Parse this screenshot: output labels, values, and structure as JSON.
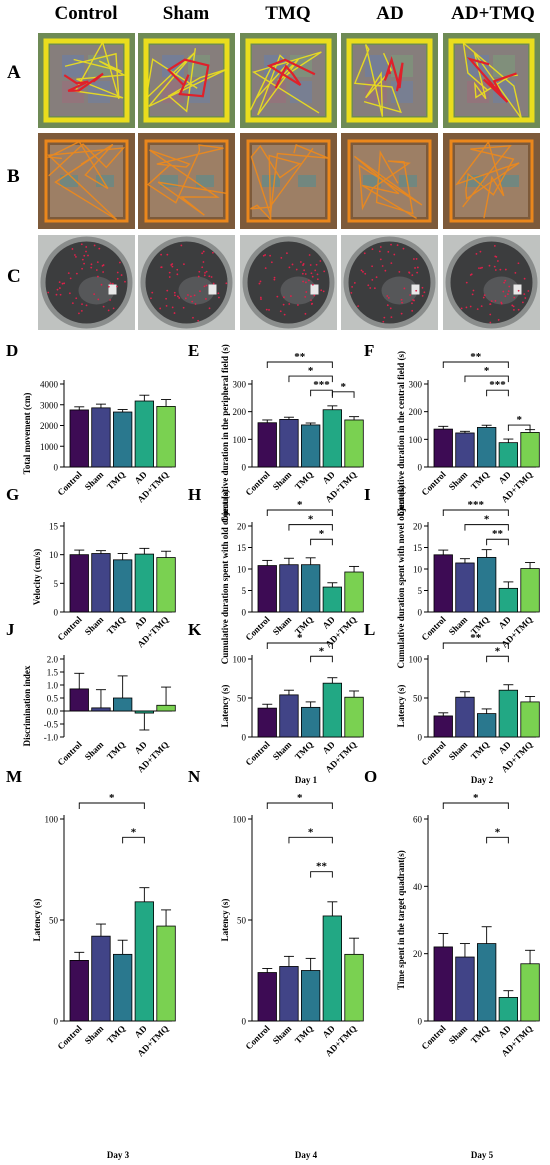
{
  "column_headers": [
    "Control",
    "Sham",
    "TMQ",
    "AD",
    "AD+TMQ"
  ],
  "photo_rows": [
    {
      "label": "A",
      "track_color": "#f0e21a",
      "bg": "#6e8a55"
    },
    {
      "label": "B",
      "track_color": "#f08a1a",
      "bg": "#7d5a3a"
    },
    {
      "label": "C",
      "track_color": "#e0204a",
      "bg": "#4a4a4a"
    }
  ],
  "colors": {
    "Control": "#3d0b54",
    "Sham": "#414487",
    "TMQ": "#2a788e",
    "AD": "#22a884",
    "AD+TMQ": "#7ad151"
  },
  "chart_data": [
    {
      "panel": "D",
      "type": "bar",
      "categories": [
        "Control",
        "Sham",
        "TMQ",
        "AD",
        "AD+TMQ"
      ],
      "values": [
        2750,
        2850,
        2650,
        3180,
        2920
      ],
      "errors": [
        150,
        180,
        120,
        280,
        330
      ],
      "ylabel": "Total movement (cm)",
      "ylim": [
        0,
        4000
      ],
      "yticks": [
        0,
        1000,
        2000,
        3000,
        4000
      ],
      "sig": [],
      "xlabel": ""
    },
    {
      "panel": "E",
      "type": "bar",
      "categories": [
        "Control",
        "Sham",
        "TMQ",
        "AD",
        "AD+TMQ"
      ],
      "values": [
        160,
        172,
        152,
        207,
        170
      ],
      "errors": [
        10,
        8,
        7,
        14,
        12
      ],
      "ylabel": "Cumulative duration in the peripheral field (s)",
      "ylim": [
        0,
        300
      ],
      "yticks": [
        0,
        100,
        200,
        300
      ],
      "sig": [
        [
          "Control",
          "AD",
          "**"
        ],
        [
          "Sham",
          "AD",
          "*"
        ],
        [
          "TMQ",
          "AD",
          "***"
        ],
        [
          "AD",
          "AD+TMQ",
          "*"
        ]
      ],
      "xlabel": ""
    },
    {
      "panel": "F",
      "type": "bar",
      "categories": [
        "Control",
        "Sham",
        "TMQ",
        "AD",
        "AD+TMQ"
      ],
      "values": [
        137,
        123,
        143,
        88,
        125
      ],
      "errors": [
        10,
        6,
        8,
        13,
        10
      ],
      "ylabel": "Cumulative duration in the central field (s)",
      "ylim": [
        0,
        300
      ],
      "yticks": [
        0,
        100,
        200,
        300
      ],
      "sig": [
        [
          "Control",
          "AD",
          "**"
        ],
        [
          "Sham",
          "AD",
          "*"
        ],
        [
          "TMQ",
          "AD",
          "***"
        ],
        [
          "AD",
          "AD+TMQ",
          "*"
        ]
      ],
      "xlabel": ""
    },
    {
      "panel": "G",
      "type": "bar",
      "categories": [
        "Control",
        "Sham",
        "TMQ",
        "AD",
        "AD+TMQ"
      ],
      "values": [
        10.0,
        10.2,
        9.1,
        10.1,
        9.5
      ],
      "errors": [
        0.8,
        0.5,
        1.1,
        1.0,
        1.1
      ],
      "ylabel": "Velocity (cm/s)",
      "ylim": [
        0,
        15
      ],
      "yticks": [
        0,
        5,
        10,
        15
      ],
      "sig": [],
      "xlabel": ""
    },
    {
      "panel": "H",
      "type": "bar",
      "categories": [
        "Control",
        "Sham",
        "TMQ",
        "AD",
        "AD+TMQ"
      ],
      "values": [
        10.8,
        11.0,
        11.0,
        5.8,
        9.3
      ],
      "errors": [
        1.2,
        1.5,
        1.6,
        1.0,
        1.3
      ],
      "ylabel": "Cumulative duration spent with old object (s)",
      "ylim": [
        0,
        20
      ],
      "yticks": [
        0,
        5,
        10,
        15,
        20
      ],
      "sig": [
        [
          "Control",
          "AD",
          "*"
        ],
        [
          "Sham",
          "AD",
          "*"
        ],
        [
          "TMQ",
          "AD",
          "*"
        ]
      ],
      "xlabel": ""
    },
    {
      "panel": "I",
      "type": "bar",
      "categories": [
        "Control",
        "Sham",
        "TMQ",
        "AD",
        "AD+TMQ"
      ],
      "values": [
        13.3,
        11.4,
        12.7,
        5.5,
        10.1
      ],
      "errors": [
        1.1,
        1.0,
        1.8,
        1.5,
        1.4
      ],
      "ylabel": "Cumulative duration spent with novel object (s)",
      "ylim": [
        0,
        20
      ],
      "yticks": [
        0,
        5,
        10,
        15,
        20
      ],
      "sig": [
        [
          "Control",
          "AD",
          "***"
        ],
        [
          "Sham",
          "AD",
          "*"
        ],
        [
          "TMQ",
          "AD",
          "**"
        ]
      ],
      "xlabel": ""
    },
    {
      "panel": "J",
      "type": "bar",
      "categories": [
        "Control",
        "Sham",
        "TMQ",
        "AD",
        "AD+TMQ"
      ],
      "values": [
        0.85,
        0.12,
        0.5,
        -0.08,
        0.22
      ],
      "errors": [
        0.6,
        0.7,
        0.85,
        0.65,
        0.7
      ],
      "ylabel": "Discrimination index",
      "ylim": [
        -1.0,
        2.0
      ],
      "yticks": [
        -1.0,
        -0.5,
        0.0,
        0.5,
        1.0,
        1.5,
        2.0
      ],
      "tick_format": "fixed1",
      "sig": [],
      "xlabel": ""
    },
    {
      "panel": "K",
      "type": "bar",
      "categories": [
        "Control",
        "Sham",
        "TMQ",
        "AD",
        "AD+TMQ"
      ],
      "values": [
        37,
        54,
        38,
        69,
        51
      ],
      "errors": [
        5,
        6,
        7,
        7,
        8
      ],
      "ylabel": "Latency (s)",
      "ylim": [
        0,
        100
      ],
      "yticks": [
        0,
        50,
        100
      ],
      "sig": [
        [
          "Control",
          "AD",
          "*"
        ],
        [
          "TMQ",
          "AD",
          "*"
        ]
      ],
      "xlabel": "Day 1"
    },
    {
      "panel": "L",
      "type": "bar",
      "categories": [
        "Control",
        "Sham",
        "TMQ",
        "AD",
        "AD+TMQ"
      ],
      "values": [
        27,
        51,
        30,
        60,
        45
      ],
      "errors": [
        4,
        7,
        6,
        7,
        7
      ],
      "ylabel": "Latency (s)",
      "ylim": [
        0,
        100
      ],
      "yticks": [
        0,
        50,
        100
      ],
      "sig": [
        [
          "Control",
          "AD",
          "**"
        ],
        [
          "TMQ",
          "AD",
          "*"
        ]
      ],
      "xlabel": "Day 2"
    },
    {
      "panel": "M",
      "type": "bar",
      "categories": [
        "Control",
        "Sham",
        "TMQ",
        "AD",
        "AD+TMQ"
      ],
      "values": [
        30,
        42,
        33,
        59,
        47
      ],
      "errors": [
        4,
        6,
        7,
        7,
        8
      ],
      "ylabel": "Latency (s)",
      "ylim": [
        0,
        100
      ],
      "yticks": [
        0,
        50,
        100
      ],
      "sig": [
        [
          "Control",
          "AD",
          "*"
        ],
        [
          "TMQ",
          "AD",
          "*"
        ]
      ],
      "xlabel": "Day 3"
    },
    {
      "panel": "N",
      "type": "bar",
      "categories": [
        "Control",
        "Sham",
        "TMQ",
        "AD",
        "AD+TMQ"
      ],
      "values": [
        24,
        27,
        25,
        52,
        33
      ],
      "errors": [
        2,
        5,
        6,
        7,
        8
      ],
      "ylabel": "Latency (s)",
      "ylim": [
        0,
        100
      ],
      "yticks": [
        0,
        50,
        100
      ],
      "sig": [
        [
          "Control",
          "AD",
          "*"
        ],
        [
          "Sham",
          "AD",
          "*"
        ],
        [
          "TMQ",
          "AD",
          "**"
        ]
      ],
      "xlabel": "Day 4"
    },
    {
      "panel": "O",
      "type": "bar",
      "categories": [
        "Control",
        "Sham",
        "TMQ",
        "AD",
        "AD+TMQ"
      ],
      "values": [
        22,
        19,
        23,
        7,
        17
      ],
      "errors": [
        4,
        4,
        5,
        2,
        4
      ],
      "ylabel": "Time spent in the target quadrant(s)",
      "ylim": [
        0,
        60
      ],
      "yticks": [
        0,
        20,
        40,
        60
      ],
      "sig": [
        [
          "Control",
          "AD",
          "*"
        ],
        [
          "TMQ",
          "AD",
          "*"
        ]
      ],
      "xlabel": "Day 5"
    }
  ]
}
